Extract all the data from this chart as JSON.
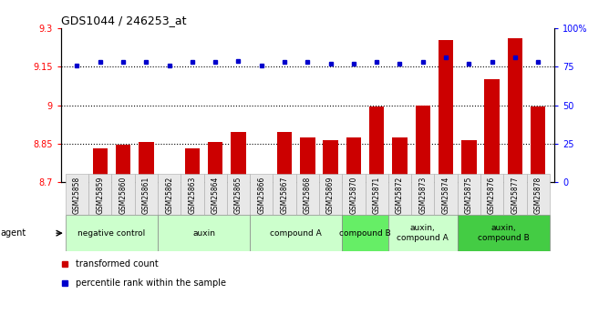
{
  "title": "GDS1044 / 246253_at",
  "samples": [
    "GSM25858",
    "GSM25859",
    "GSM25860",
    "GSM25861",
    "GSM25862",
    "GSM25863",
    "GSM25864",
    "GSM25865",
    "GSM25866",
    "GSM25867",
    "GSM25868",
    "GSM25869",
    "GSM25870",
    "GSM25871",
    "GSM25872",
    "GSM25873",
    "GSM25874",
    "GSM25875",
    "GSM25876",
    "GSM25877",
    "GSM25878"
  ],
  "bar_values": [
    8.72,
    8.83,
    8.845,
    8.855,
    8.71,
    8.83,
    8.855,
    8.895,
    8.72,
    8.895,
    8.875,
    8.865,
    8.875,
    8.995,
    8.875,
    9.0,
    9.255,
    8.865,
    9.1,
    9.26,
    8.995
  ],
  "percentile_values": [
    76,
    78,
    78,
    78,
    76,
    78,
    78,
    79,
    76,
    78,
    78,
    77,
    77,
    78,
    77,
    78,
    81,
    77,
    78,
    81,
    78
  ],
  "ylim_left": [
    8.7,
    9.3
  ],
  "ylim_right": [
    0,
    100
  ],
  "yticks_left": [
    8.7,
    8.85,
    9.0,
    9.15,
    9.3
  ],
  "ytick_labels_left": [
    "8.7",
    "8.85",
    "9",
    "9.15",
    "9.3"
  ],
  "yticks_right": [
    0,
    25,
    50,
    75,
    100
  ],
  "ytick_labels_right": [
    "0",
    "25",
    "50",
    "75",
    "100%"
  ],
  "hlines": [
    8.85,
    9.0,
    9.15
  ],
  "bar_color": "#cc0000",
  "percentile_color": "#0000cc",
  "agent_groups": [
    {
      "label": "negative control",
      "start": 0,
      "end": 3,
      "color": "#ccffcc"
    },
    {
      "label": "auxin",
      "start": 4,
      "end": 7,
      "color": "#ccffcc"
    },
    {
      "label": "compound A",
      "start": 8,
      "end": 11,
      "color": "#ccffcc"
    },
    {
      "label": "compound B",
      "start": 12,
      "end": 13,
      "color": "#66ee66"
    },
    {
      "label": "auxin,\ncompound A",
      "start": 14,
      "end": 16,
      "color": "#ccffcc"
    },
    {
      "label": "auxin,\ncompound B",
      "start": 17,
      "end": 20,
      "color": "#44cc44"
    }
  ],
  "legend_items": [
    {
      "label": "transformed count",
      "color": "#cc0000"
    },
    {
      "label": "percentile rank within the sample",
      "color": "#0000cc"
    }
  ]
}
